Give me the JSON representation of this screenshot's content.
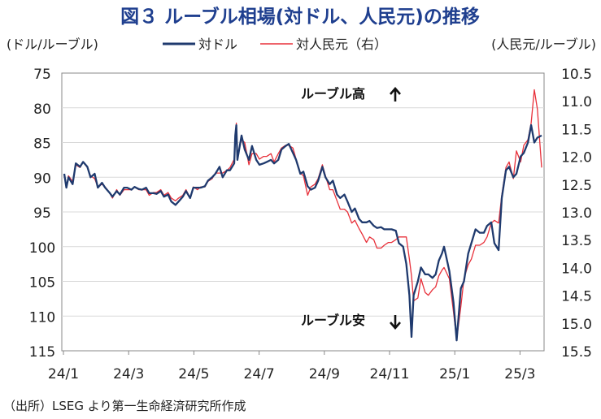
{
  "chart_data": {
    "type": "line",
    "title": "図３ ルーブル相場(対ドル、人民元)の推移",
    "left_axis_label": "(ドル/ルーブル)",
    "right_axis_label": "(人民元/ルーブル)",
    "source": "（出所）LSEG より第一生命経済研究所作成",
    "annotations": {
      "up": "ルーブル高",
      "down": "ルーブル安"
    },
    "x_ticks": [
      "24/1",
      "24/3",
      "24/5",
      "24/7",
      "24/9",
      "24/11",
      "25/1",
      "25/3"
    ],
    "y_left": {
      "range": [
        75,
        115
      ],
      "inverted": true,
      "ticks": [
        "75",
        "80",
        "85",
        "90",
        "95",
        "100",
        "105",
        "110",
        "115"
      ]
    },
    "y_right": {
      "range": [
        10.5,
        15.5
      ],
      "inverted": true,
      "ticks": [
        "10.5",
        "11.0",
        "11.5",
        "12.0",
        "12.5",
        "13.0",
        "13.5",
        "14.0",
        "14.5",
        "15.0",
        "15.5"
      ]
    },
    "grid": "horizontal",
    "legend_position": "top",
    "series": [
      {
        "name": "対ドル",
        "axis": "left",
        "color": "#1f3a6e",
        "points": [
          [
            "2024-01-01",
            89.5
          ],
          [
            "2024-01-03",
            91.5
          ],
          [
            "2024-01-05",
            90.0
          ],
          [
            "2024-01-09",
            91.0
          ],
          [
            "2024-01-12",
            88.0
          ],
          [
            "2024-01-16",
            88.5
          ],
          [
            "2024-01-19",
            87.8
          ],
          [
            "2024-01-23",
            88.5
          ],
          [
            "2024-01-26",
            90.0
          ],
          [
            "2024-01-30",
            89.5
          ],
          [
            "2024-02-02",
            91.5
          ],
          [
            "2024-02-06",
            90.8
          ],
          [
            "2024-02-09",
            91.5
          ],
          [
            "2024-02-13",
            92.2
          ],
          [
            "2024-02-16",
            92.8
          ],
          [
            "2024-02-20",
            92.0
          ],
          [
            "2024-02-23",
            92.5
          ],
          [
            "2024-02-27",
            91.5
          ],
          [
            "2024-03-01",
            91.5
          ],
          [
            "2024-03-05",
            91.8
          ],
          [
            "2024-03-08",
            91.4
          ],
          [
            "2024-03-12",
            91.7
          ],
          [
            "2024-03-15",
            91.8
          ],
          [
            "2024-03-19",
            91.5
          ],
          [
            "2024-03-22",
            92.3
          ],
          [
            "2024-03-26",
            92.3
          ],
          [
            "2024-03-29",
            92.4
          ],
          [
            "2024-04-02",
            92.0
          ],
          [
            "2024-04-05",
            92.8
          ],
          [
            "2024-04-09",
            92.5
          ],
          [
            "2024-04-12",
            93.5
          ],
          [
            "2024-04-16",
            94.0
          ],
          [
            "2024-04-19",
            93.5
          ],
          [
            "2024-04-23",
            92.8
          ],
          [
            "2024-04-26",
            92.0
          ],
          [
            "2024-04-30",
            93.0
          ],
          [
            "2024-05-03",
            91.5
          ],
          [
            "2024-05-07",
            91.5
          ],
          [
            "2024-05-10",
            91.5
          ],
          [
            "2024-05-14",
            91.3
          ],
          [
            "2024-05-17",
            90.5
          ],
          [
            "2024-05-21",
            90.0
          ],
          [
            "2024-05-24",
            89.5
          ],
          [
            "2024-05-28",
            88.5
          ],
          [
            "2024-05-31",
            90.0
          ],
          [
            "2024-06-04",
            89.0
          ],
          [
            "2024-06-07",
            89.0
          ],
          [
            "2024-06-11",
            88.0
          ],
          [
            "2024-06-12",
            84.0
          ],
          [
            "2024-06-13",
            82.5
          ],
          [
            "2024-06-14",
            87.5
          ],
          [
            "2024-06-18",
            84.0
          ],
          [
            "2024-06-21",
            86.0
          ],
          [
            "2024-06-25",
            87.5
          ],
          [
            "2024-06-28",
            85.5
          ],
          [
            "2024-07-02",
            87.5
          ],
          [
            "2024-07-05",
            88.2
          ],
          [
            "2024-07-09",
            88.0
          ],
          [
            "2024-07-12",
            87.8
          ],
          [
            "2024-07-16",
            87.5
          ],
          [
            "2024-07-19",
            88.0
          ],
          [
            "2024-07-23",
            87.5
          ],
          [
            "2024-07-26",
            86.0
          ],
          [
            "2024-07-30",
            85.5
          ],
          [
            "2024-08-02",
            85.2
          ],
          [
            "2024-08-06",
            86.5
          ],
          [
            "2024-08-09",
            87.5
          ],
          [
            "2024-08-13",
            89.5
          ],
          [
            "2024-08-16",
            89.2
          ],
          [
            "2024-08-20",
            91.3
          ],
          [
            "2024-08-23",
            91.8
          ],
          [
            "2024-08-27",
            91.5
          ],
          [
            "2024-08-30",
            90.5
          ],
          [
            "2024-09-03",
            88.5
          ],
          [
            "2024-09-06",
            90.0
          ],
          [
            "2024-09-10",
            91.0
          ],
          [
            "2024-09-13",
            90.5
          ],
          [
            "2024-09-17",
            92.5
          ],
          [
            "2024-09-20",
            93.0
          ],
          [
            "2024-09-24",
            92.5
          ],
          [
            "2024-09-27",
            93.5
          ],
          [
            "2024-10-01",
            95.0
          ],
          [
            "2024-10-04",
            94.5
          ],
          [
            "2024-10-08",
            96.0
          ],
          [
            "2024-10-11",
            96.5
          ],
          [
            "2024-10-15",
            96.5
          ],
          [
            "2024-10-18",
            96.3
          ],
          [
            "2024-10-22",
            97.0
          ],
          [
            "2024-10-25",
            97.3
          ],
          [
            "2024-10-29",
            97.2
          ],
          [
            "2024-11-01",
            97.5
          ],
          [
            "2024-11-05",
            97.5
          ],
          [
            "2024-11-08",
            97.5
          ],
          [
            "2024-11-12",
            97.7
          ],
          [
            "2024-11-15",
            99.5
          ],
          [
            "2024-11-19",
            100.0
          ],
          [
            "2024-11-22",
            102.5
          ],
          [
            "2024-11-25",
            107.0
          ],
          [
            "2024-11-27",
            113.0
          ],
          [
            "2024-11-29",
            107.0
          ],
          [
            "2024-12-03",
            105.0
          ],
          [
            "2024-12-06",
            103.0
          ],
          [
            "2024-12-10",
            104.0
          ],
          [
            "2024-12-13",
            104.0
          ],
          [
            "2024-12-17",
            104.5
          ],
          [
            "2024-12-20",
            104.0
          ],
          [
            "2024-12-23",
            102.0
          ],
          [
            "2024-12-26",
            101.0
          ],
          [
            "2024-12-28",
            100.0
          ],
          [
            "2025-01-02",
            103.5
          ],
          [
            "2025-01-06",
            108.0
          ],
          [
            "2025-01-09",
            113.5
          ],
          [
            "2025-01-13",
            106.0
          ],
          [
            "2025-01-16",
            105.0
          ],
          [
            "2025-01-20",
            101.0
          ],
          [
            "2025-01-23",
            99.5
          ],
          [
            "2025-01-27",
            97.5
          ],
          [
            "2025-01-31",
            98.0
          ],
          [
            "2025-02-04",
            98.0
          ],
          [
            "2025-02-07",
            97.0
          ],
          [
            "2025-02-11",
            96.5
          ],
          [
            "2025-02-14",
            99.5
          ],
          [
            "2025-02-18",
            100.5
          ],
          [
            "2025-02-21",
            93.0
          ],
          [
            "2025-02-25",
            89.0
          ],
          [
            "2025-02-28",
            88.5
          ],
          [
            "2025-03-04",
            90.0
          ],
          [
            "2025-03-07",
            89.5
          ],
          [
            "2025-03-11",
            87.0
          ],
          [
            "2025-03-14",
            86.5
          ],
          [
            "2025-03-18",
            85.0
          ],
          [
            "2025-03-21",
            82.5
          ],
          [
            "2025-03-24",
            85.0
          ],
          [
            "2025-03-27",
            84.3
          ],
          [
            "2025-03-31",
            84.0
          ]
        ]
      },
      {
        "name": "対人民元（右）",
        "axis": "right",
        "color": "#e8303a",
        "points": [
          [
            "2024-01-01",
            12.35
          ],
          [
            "2024-01-03",
            12.55
          ],
          [
            "2024-01-05",
            12.35
          ],
          [
            "2024-01-09",
            12.45
          ],
          [
            "2024-01-12",
            12.15
          ],
          [
            "2024-01-16",
            12.2
          ],
          [
            "2024-01-19",
            12.1
          ],
          [
            "2024-01-23",
            12.2
          ],
          [
            "2024-01-26",
            12.35
          ],
          [
            "2024-01-30",
            12.4
          ],
          [
            "2024-02-02",
            12.55
          ],
          [
            "2024-02-06",
            12.5
          ],
          [
            "2024-02-09",
            12.55
          ],
          [
            "2024-02-13",
            12.65
          ],
          [
            "2024-02-16",
            12.75
          ],
          [
            "2024-02-20",
            12.6
          ],
          [
            "2024-02-23",
            12.7
          ],
          [
            "2024-02-27",
            12.6
          ],
          [
            "2024-03-01",
            12.6
          ],
          [
            "2024-03-05",
            12.6
          ],
          [
            "2024-03-08",
            12.55
          ],
          [
            "2024-03-12",
            12.6
          ],
          [
            "2024-03-15",
            12.6
          ],
          [
            "2024-03-19",
            12.6
          ],
          [
            "2024-03-22",
            12.7
          ],
          [
            "2024-03-26",
            12.65
          ],
          [
            "2024-03-29",
            12.65
          ],
          [
            "2024-04-02",
            12.6
          ],
          [
            "2024-04-05",
            12.7
          ],
          [
            "2024-04-09",
            12.65
          ],
          [
            "2024-04-12",
            12.75
          ],
          [
            "2024-04-16",
            12.8
          ],
          [
            "2024-04-19",
            12.75
          ],
          [
            "2024-04-23",
            12.7
          ],
          [
            "2024-04-26",
            12.6
          ],
          [
            "2024-04-30",
            12.75
          ],
          [
            "2024-05-03",
            12.55
          ],
          [
            "2024-05-07",
            12.6
          ],
          [
            "2024-05-10",
            12.55
          ],
          [
            "2024-05-14",
            12.55
          ],
          [
            "2024-05-17",
            12.45
          ],
          [
            "2024-05-21",
            12.4
          ],
          [
            "2024-05-24",
            12.3
          ],
          [
            "2024-05-28",
            12.3
          ],
          [
            "2024-05-31",
            12.3
          ],
          [
            "2024-06-04",
            12.25
          ],
          [
            "2024-06-07",
            12.2
          ],
          [
            "2024-06-11",
            12.05
          ],
          [
            "2024-06-12",
            11.7
          ],
          [
            "2024-06-13",
            11.4
          ],
          [
            "2024-06-14",
            12.0
          ],
          [
            "2024-06-18",
            11.7
          ],
          [
            "2024-06-21",
            11.75
          ],
          [
            "2024-06-25",
            12.15
          ],
          [
            "2024-06-28",
            11.95
          ],
          [
            "2024-07-02",
            11.95
          ],
          [
            "2024-07-05",
            12.05
          ],
          [
            "2024-07-09",
            12.0
          ],
          [
            "2024-07-12",
            12.0
          ],
          [
            "2024-07-16",
            11.95
          ],
          [
            "2024-07-19",
            12.1
          ],
          [
            "2024-07-23",
            11.95
          ],
          [
            "2024-07-26",
            11.85
          ],
          [
            "2024-07-30",
            11.8
          ],
          [
            "2024-08-02",
            11.8
          ],
          [
            "2024-08-06",
            11.85
          ],
          [
            "2024-08-09",
            12.05
          ],
          [
            "2024-08-13",
            12.3
          ],
          [
            "2024-08-16",
            12.35
          ],
          [
            "2024-08-20",
            12.7
          ],
          [
            "2024-08-23",
            12.55
          ],
          [
            "2024-08-27",
            12.5
          ],
          [
            "2024-08-30",
            12.4
          ],
          [
            "2024-09-03",
            12.15
          ],
          [
            "2024-09-06",
            12.35
          ],
          [
            "2024-09-10",
            12.6
          ],
          [
            "2024-09-13",
            12.6
          ],
          [
            "2024-09-17",
            12.8
          ],
          [
            "2024-09-20",
            12.95
          ],
          [
            "2024-09-24",
            12.95
          ],
          [
            "2024-09-27",
            13.0
          ],
          [
            "2024-10-01",
            13.2
          ],
          [
            "2024-10-04",
            13.15
          ],
          [
            "2024-10-08",
            13.3
          ],
          [
            "2024-10-11",
            13.4
          ],
          [
            "2024-10-15",
            13.55
          ],
          [
            "2024-10-18",
            13.45
          ],
          [
            "2024-10-22",
            13.5
          ],
          [
            "2024-10-25",
            13.65
          ],
          [
            "2024-10-29",
            13.65
          ],
          [
            "2024-11-01",
            13.6
          ],
          [
            "2024-11-05",
            13.55
          ],
          [
            "2024-11-08",
            13.55
          ],
          [
            "2024-11-12",
            13.5
          ],
          [
            "2024-11-15",
            13.45
          ],
          [
            "2024-11-19",
            13.45
          ],
          [
            "2024-11-22",
            13.45
          ],
          [
            "2024-11-25",
            13.85
          ],
          [
            "2024-11-27",
            14.15
          ],
          [
            "2024-11-29",
            14.6
          ],
          [
            "2024-12-03",
            14.55
          ],
          [
            "2024-12-06",
            14.2
          ],
          [
            "2024-12-10",
            14.45
          ],
          [
            "2024-12-13",
            14.5
          ],
          [
            "2024-12-17",
            14.4
          ],
          [
            "2024-12-20",
            14.35
          ],
          [
            "2024-12-23",
            14.15
          ],
          [
            "2024-12-26",
            14.05
          ],
          [
            "2024-12-28",
            14.0
          ],
          [
            "2025-01-02",
            14.2
          ],
          [
            "2025-01-06",
            14.8
          ],
          [
            "2025-01-09",
            15.3
          ],
          [
            "2025-01-13",
            14.7
          ],
          [
            "2025-01-16",
            14.2
          ],
          [
            "2025-01-20",
            13.95
          ],
          [
            "2025-01-23",
            13.85
          ],
          [
            "2025-01-27",
            13.6
          ],
          [
            "2025-01-31",
            13.6
          ],
          [
            "2025-02-04",
            13.55
          ],
          [
            "2025-02-07",
            13.45
          ],
          [
            "2025-02-11",
            13.2
          ],
          [
            "2025-02-14",
            13.15
          ],
          [
            "2025-02-18",
            13.2
          ],
          [
            "2025-02-21",
            12.7
          ],
          [
            "2025-02-25",
            12.2
          ],
          [
            "2025-02-28",
            12.1
          ],
          [
            "2025-03-04",
            12.4
          ],
          [
            "2025-03-07",
            11.9
          ],
          [
            "2025-03-11",
            12.1
          ],
          [
            "2025-03-14",
            11.8
          ],
          [
            "2025-03-18",
            11.7
          ],
          [
            "2025-03-21",
            11.4
          ],
          [
            "2025-03-24",
            10.8
          ],
          [
            "2025-03-27",
            11.15
          ],
          [
            "2025-03-31",
            12.2
          ]
        ]
      }
    ]
  }
}
